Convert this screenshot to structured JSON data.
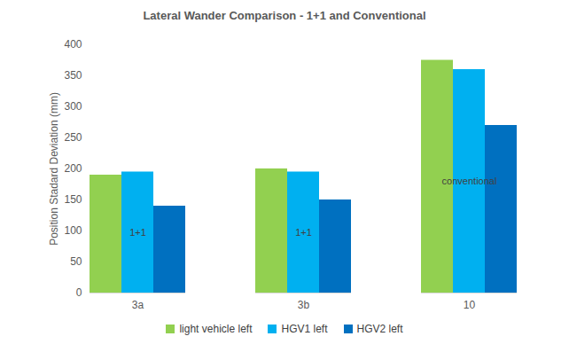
{
  "chart_data": {
    "type": "bar",
    "title": "Lateral Wander Comparison - 1+1 and Conventional",
    "y_label": "Position Stadard Deviation (mm)",
    "categories": [
      "3a",
      "3b",
      "10"
    ],
    "series": [
      {
        "name": "light vehicle left",
        "color": "#92d050",
        "values": [
          190,
          200,
          375
        ]
      },
      {
        "name": "HGV1 left",
        "color": "#00b0f0",
        "values": [
          195,
          195,
          360
        ]
      },
      {
        "name": "HGV2 left",
        "color": "#0070c0",
        "values": [
          140,
          150,
          270
        ]
      }
    ],
    "annotations": [
      {
        "text": "1+1",
        "category": "3a",
        "series": "HGV1 left"
      },
      {
        "text": "1+1",
        "category": "3b",
        "series": "HGV1 left"
      },
      {
        "text": "conventional",
        "category": "10",
        "series": "HGV1 left"
      }
    ],
    "ylim": [
      0,
      400
    ],
    "yticks": [
      0,
      50,
      100,
      150,
      200,
      250,
      300,
      350,
      400
    ],
    "grid": false,
    "legend": "bottom"
  }
}
